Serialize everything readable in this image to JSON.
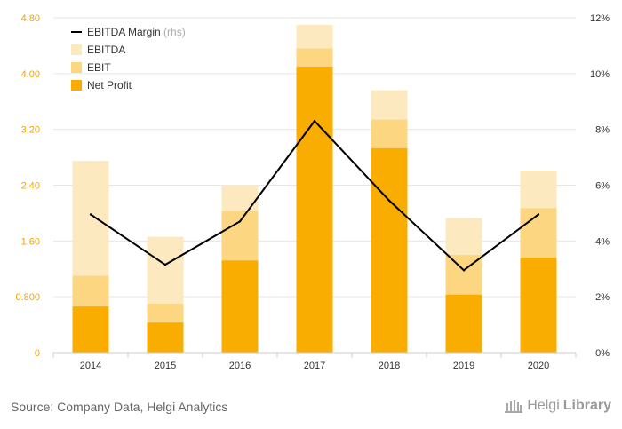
{
  "chart_data": {
    "type": "bar",
    "stacked_overlay": true,
    "categories": [
      "2014",
      "2015",
      "2016",
      "2017",
      "2018",
      "2019",
      "2020"
    ],
    "series": [
      {
        "name": "EBITDA",
        "type": "bar",
        "values": [
          2.75,
          1.66,
          2.4,
          4.7,
          3.76,
          1.93,
          2.61
        ],
        "color": "#fde9bf"
      },
      {
        "name": "EBIT",
        "type": "bar",
        "values": [
          1.1,
          0.7,
          2.03,
          4.36,
          3.34,
          1.4,
          2.07
        ],
        "color": "#fcd681"
      },
      {
        "name": "Net Profit",
        "type": "bar",
        "values": [
          0.66,
          0.43,
          1.32,
          4.1,
          2.93,
          0.83,
          1.36
        ],
        "color": "#f8ad00"
      },
      {
        "name": "EBITDA Margin",
        "suffix": "(rhs)",
        "type": "line",
        "axis": "right",
        "values": [
          4.95,
          3.15,
          4.7,
          8.3,
          5.45,
          2.95,
          4.95
        ],
        "color": "#000000"
      }
    ],
    "y_left": {
      "ticks": [
        "0",
        "0.800",
        "1.60",
        "2.40",
        "3.20",
        "4.00",
        "4.80"
      ],
      "range": [
        0,
        4.8
      ]
    },
    "y_right": {
      "ticks": [
        "0%",
        "2%",
        "4%",
        "6%",
        "8%",
        "10%",
        "12%"
      ],
      "range": [
        0,
        12
      ]
    },
    "legend_position": "top-left",
    "grid": true,
    "colors": {
      "axis_label_left": "#f0a500",
      "axis_label_right": "#333333",
      "grid": "#e6e6e6"
    }
  },
  "footer": {
    "source": "Source: Company Data, Helgi Analytics",
    "brand_helgi": "Helgi",
    "brand_library": "Library"
  }
}
